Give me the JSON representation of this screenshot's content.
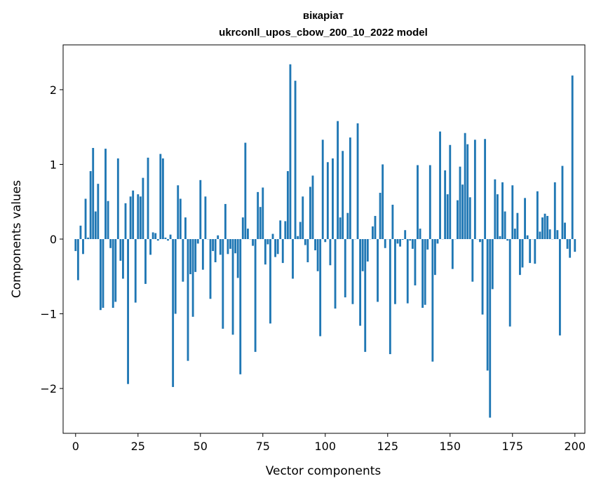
{
  "chart_data": {
    "type": "bar",
    "title": "вікаріат",
    "subtitle": "ukrconll_upos_cbow_200_10_2022 model",
    "xlabel": "Vector components",
    "ylabel": "Components values",
    "xlim": [
      -5,
      204
    ],
    "ylim": [
      -2.6,
      2.6
    ],
    "xticks": [
      0,
      25,
      50,
      75,
      100,
      125,
      150,
      175,
      200
    ],
    "yticks": [
      -2,
      -1,
      0,
      1,
      2
    ],
    "xtick_labels": [
      "0",
      "25",
      "50",
      "75",
      "100",
      "125",
      "150",
      "175",
      "200"
    ],
    "ytick_labels": [
      "−2",
      "−1",
      "0",
      "1",
      "2"
    ],
    "bar_color": "#1f77b4",
    "values": [
      -0.16,
      -0.55,
      0.18,
      -0.2,
      0.54,
      0.02,
      0.91,
      1.22,
      0.37,
      0.74,
      -0.95,
      -0.92,
      1.21,
      0.51,
      -0.12,
      -0.92,
      -0.84,
      1.08,
      -0.29,
      -0.53,
      0.48,
      -1.94,
      0.57,
      0.65,
      -0.85,
      0.6,
      0.57,
      0.82,
      -0.6,
      1.09,
      -0.21,
      0.09,
      0.08,
      -0.02,
      1.14,
      1.08,
      0.02,
      -0.02,
      0.06,
      -1.98,
      -1.0,
      0.72,
      0.54,
      -0.57,
      0.29,
      -1.63,
      -0.47,
      -1.04,
      -0.44,
      -0.06,
      0.79,
      -0.41,
      0.57,
      0.0,
      -0.8,
      -0.16,
      -0.31,
      0.05,
      -0.21,
      -1.2,
      0.47,
      -0.2,
      -0.13,
      -1.28,
      -0.19,
      -0.52,
      -1.81,
      0.29,
      1.29,
      0.14,
      0.0,
      -0.09,
      -1.51,
      0.63,
      0.43,
      0.69,
      -0.34,
      -0.07,
      -1.13,
      0.07,
      -0.24,
      -0.2,
      0.25,
      -0.32,
      0.24,
      0.91,
      2.34,
      -0.53,
      2.12,
      0.04,
      0.23,
      0.57,
      -0.08,
      -0.31,
      0.7,
      0.85,
      -0.15,
      -0.43,
      -1.3,
      1.33,
      -0.04,
      1.03,
      -0.35,
      1.08,
      -0.93,
      1.58,
      0.29,
      1.18,
      -0.78,
      0.35,
      1.36,
      -0.87,
      0.0,
      1.55,
      -1.16,
      -0.43,
      -1.51,
      -0.3,
      0.0,
      0.17,
      0.31,
      -0.84,
      0.62,
      1.0,
      -0.12,
      0.0,
      -1.54,
      0.46,
      -0.87,
      -0.06,
      -0.1,
      -0.01,
      0.12,
      -0.86,
      -0.02,
      -0.13,
      -0.62,
      0.99,
      0.14,
      -0.92,
      -0.88,
      -0.14,
      0.99,
      -1.64,
      -0.48,
      -0.06,
      1.44,
      0.0,
      0.92,
      0.6,
      1.26,
      -0.4,
      0.0,
      0.52,
      0.97,
      0.73,
      1.42,
      1.27,
      0.56,
      -0.57,
      1.33,
      0.0,
      -0.04,
      -1.01,
      1.34,
      -1.76,
      -2.39,
      -0.67,
      0.8,
      0.6,
      0.04,
      0.76,
      0.37,
      -0.02,
      -1.17,
      0.72,
      0.14,
      0.35,
      -0.48,
      -0.38,
      0.55,
      0.05,
      -0.32,
      0.0,
      -0.33,
      0.64,
      0.1,
      0.29,
      0.34,
      0.31,
      0.13,
      0.0,
      0.76,
      0.12,
      -1.29,
      0.98,
      0.22,
      -0.13,
      -0.25,
      2.19,
      -0.17
    ]
  }
}
